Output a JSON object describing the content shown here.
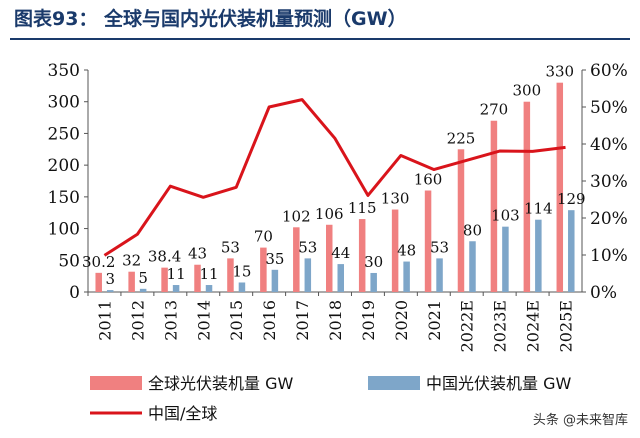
{
  "figure_title": "图表93：   全球与国内光伏装机量预测（GW）",
  "watermark": "头条 @未来智库",
  "colors": {
    "global_bar": "#f08080",
    "china_bar": "#7ea6c9",
    "ratio_line": "#d9141b",
    "title": "#1a3a6b"
  },
  "chart_data": {
    "type": "bar",
    "categories": [
      "2011",
      "2012",
      "2013",
      "2014",
      "2015",
      "2016",
      "2017",
      "2018",
      "2019",
      "2020",
      "2021",
      "2022E",
      "2023E",
      "2024E",
      "2025E"
    ],
    "series": [
      {
        "name": "全球光伏装机量 GW",
        "type": "bar",
        "axis": "left",
        "values": [
          30.2,
          32,
          38.4,
          43,
          53,
          70,
          102,
          106,
          115,
          130,
          160,
          225,
          270,
          300,
          330
        ],
        "labels": [
          "30.2",
          "32",
          "38.4",
          "43",
          "53",
          "70",
          "102",
          "106",
          "115",
          "130",
          "160",
          "225",
          "270",
          "300",
          "330"
        ]
      },
      {
        "name": "中国光伏装机量 GW",
        "type": "bar",
        "axis": "right-free",
        "axis_ref": "left",
        "values": [
          3,
          5,
          11,
          11,
          15,
          35,
          53,
          44,
          30,
          48,
          53,
          80,
          103,
          114,
          129
        ],
        "labels": [
          "3",
          "5",
          "11",
          "11",
          "15",
          "35",
          "53",
          "44",
          "30",
          "48",
          "53",
          "80",
          "103",
          "114",
          "129"
        ]
      },
      {
        "name": "中国/全球",
        "type": "line",
        "axis": "right",
        "values": [
          0.099,
          0.156,
          0.286,
          0.256,
          0.283,
          0.5,
          0.52,
          0.415,
          0.261,
          0.369,
          0.331,
          0.356,
          0.381,
          0.38,
          0.391
        ]
      }
    ],
    "y_left": {
      "min": 0,
      "max": 350,
      "ticks": [
        "0",
        "50",
        "100",
        "150",
        "200",
        "250",
        "300",
        "350"
      ]
    },
    "y_right": {
      "min": 0,
      "max": 0.6,
      "ticks": [
        "0%",
        "10%",
        "20%",
        "30%",
        "40%",
        "50%",
        "60%"
      ]
    },
    "legend": {
      "placement": "bottom"
    },
    "grid": false
  }
}
